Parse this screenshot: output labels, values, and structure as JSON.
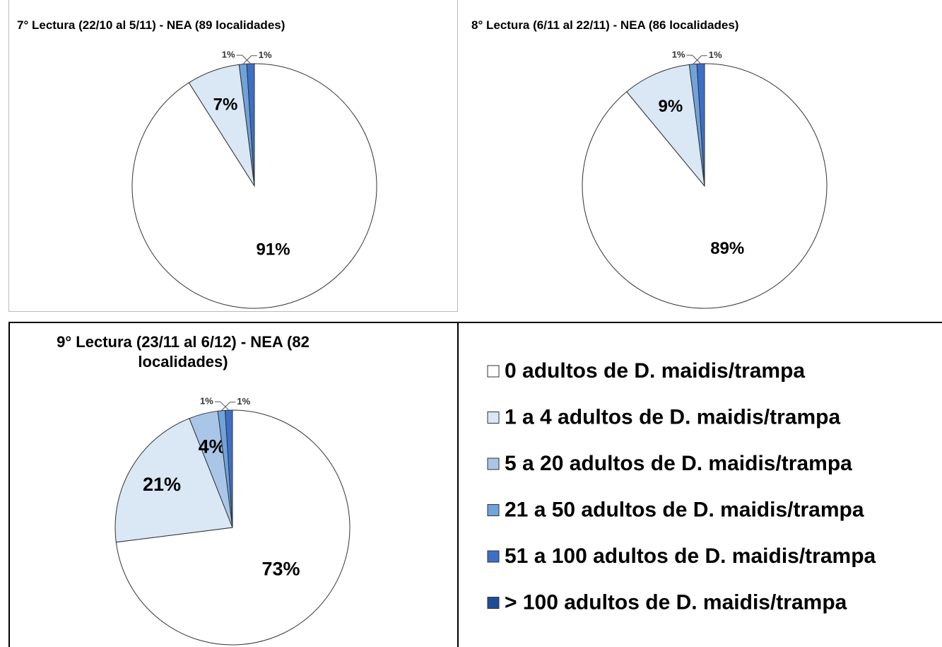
{
  "chart_data": [
    {
      "type": "pie",
      "title": "7° Lectura (22/10 al 5/11) - NEA (89 localidades)",
      "values": [
        91,
        7,
        null,
        1,
        1,
        null
      ],
      "value_labels": [
        "91%",
        "7%",
        null,
        "1%",
        "1%",
        null
      ]
    },
    {
      "type": "pie",
      "title": "8° Lectura (6/11 al 22/11) - NEA (86 localidades)",
      "values": [
        89,
        9,
        null,
        1,
        1,
        null
      ],
      "value_labels": [
        "89%",
        "9%",
        null,
        "1%",
        "1%",
        null
      ]
    },
    {
      "type": "pie",
      "title": "9° Lectura (23/11 al 6/12) - NEA (82 localidades)",
      "values": [
        73,
        21,
        4,
        1,
        1,
        null
      ],
      "value_labels": [
        "73%",
        "21%",
        "4%",
        "1%",
        "1%",
        null
      ]
    }
  ],
  "legend": {
    "categories": [
      "0 adultos de D. maidis/trampa",
      "1 a 4 adultos de D. maidis/trampa",
      "5 a 20 adultos de D. maidis/trampa",
      "21 a 50 adultos de D. maidis/trampa",
      "51 a 100 adultos de D. maidis/trampa",
      "> 100 adultos de D. maidis/trampa"
    ],
    "colors": [
      "#ffffff",
      "#dae7f5",
      "#a9c6e8",
      "#6ea3dc",
      "#3e6fc8",
      "#1f4e99"
    ]
  }
}
